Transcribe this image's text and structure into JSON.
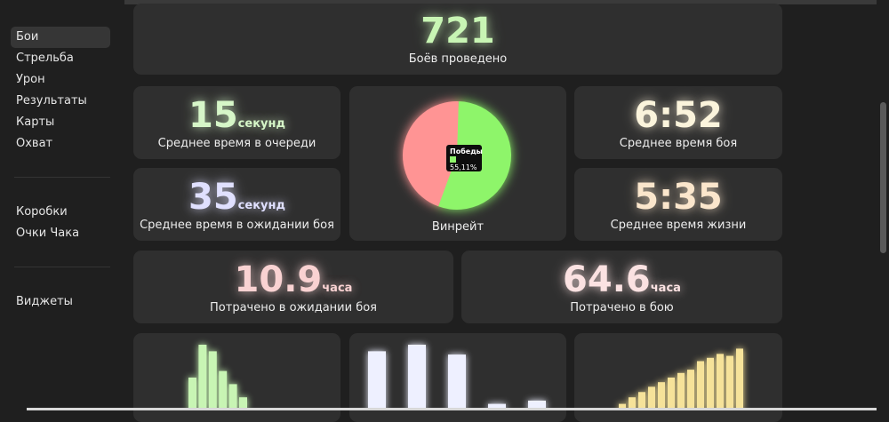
{
  "sidebar": {
    "items": [
      {
        "label": "Бои",
        "active": true
      },
      {
        "label": "Стрельба"
      },
      {
        "label": "Урон"
      },
      {
        "label": "Результаты"
      },
      {
        "label": "Карты"
      },
      {
        "label": "Охват"
      }
    ],
    "items2": [
      {
        "label": "Коробки"
      },
      {
        "label": "Очки Чака"
      }
    ],
    "items3": [
      {
        "label": "Виджеты"
      }
    ]
  },
  "stats": {
    "battles": {
      "value": "721",
      "label": "Боёв проведено",
      "color": "#c8f5b4"
    },
    "queue": {
      "value": "15",
      "unit": "секунд",
      "label": "Среднее время в очереди",
      "color": "#d6f6c8"
    },
    "wait": {
      "value": "35",
      "unit": "секунд",
      "label": "Среднее время в ожидании боя",
      "color": "#e0e0ff"
    },
    "battle_time": {
      "value": "6:52",
      "label": "Среднее время боя",
      "color": "#fbf4dc"
    },
    "life_time": {
      "value": "5:35",
      "label": "Среднее время жизни",
      "color": "#fbe6cc"
    },
    "spent_wait": {
      "value": "10.9",
      "unit": "часа",
      "label": "Потрачено в ожидании боя",
      "color": "#f9d2d2"
    },
    "spent_battle": {
      "value": "64.6",
      "unit": "часа",
      "label": "Потрачено в бою",
      "color": "#fbe2e2"
    }
  },
  "winrate": {
    "label": "Винрейт",
    "tooltip_title": "Победы",
    "tooltip_value": "55,11%",
    "win_fraction": 0.5511,
    "win_color": "#8ef56b",
    "loss_color": "#ff9494"
  },
  "chart_data": [
    {
      "type": "bar",
      "values": [
        5,
        10,
        9,
        6,
        4,
        2
      ],
      "color": "#c8f5b4",
      "ylim": [
        0,
        10
      ]
    },
    {
      "type": "bar",
      "values": [
        9,
        10,
        8.5,
        1,
        1.5
      ],
      "color": "#eef0ff",
      "ylim": [
        0,
        10
      ]
    },
    {
      "type": "bar",
      "values": [
        1,
        2,
        2.8,
        3.6,
        4.3,
        5,
        5.7,
        6.2,
        7.5,
        8,
        8.6,
        8.3,
        9.4
      ],
      "color": "#f6e39a",
      "ylim": [
        0,
        10
      ]
    }
  ]
}
